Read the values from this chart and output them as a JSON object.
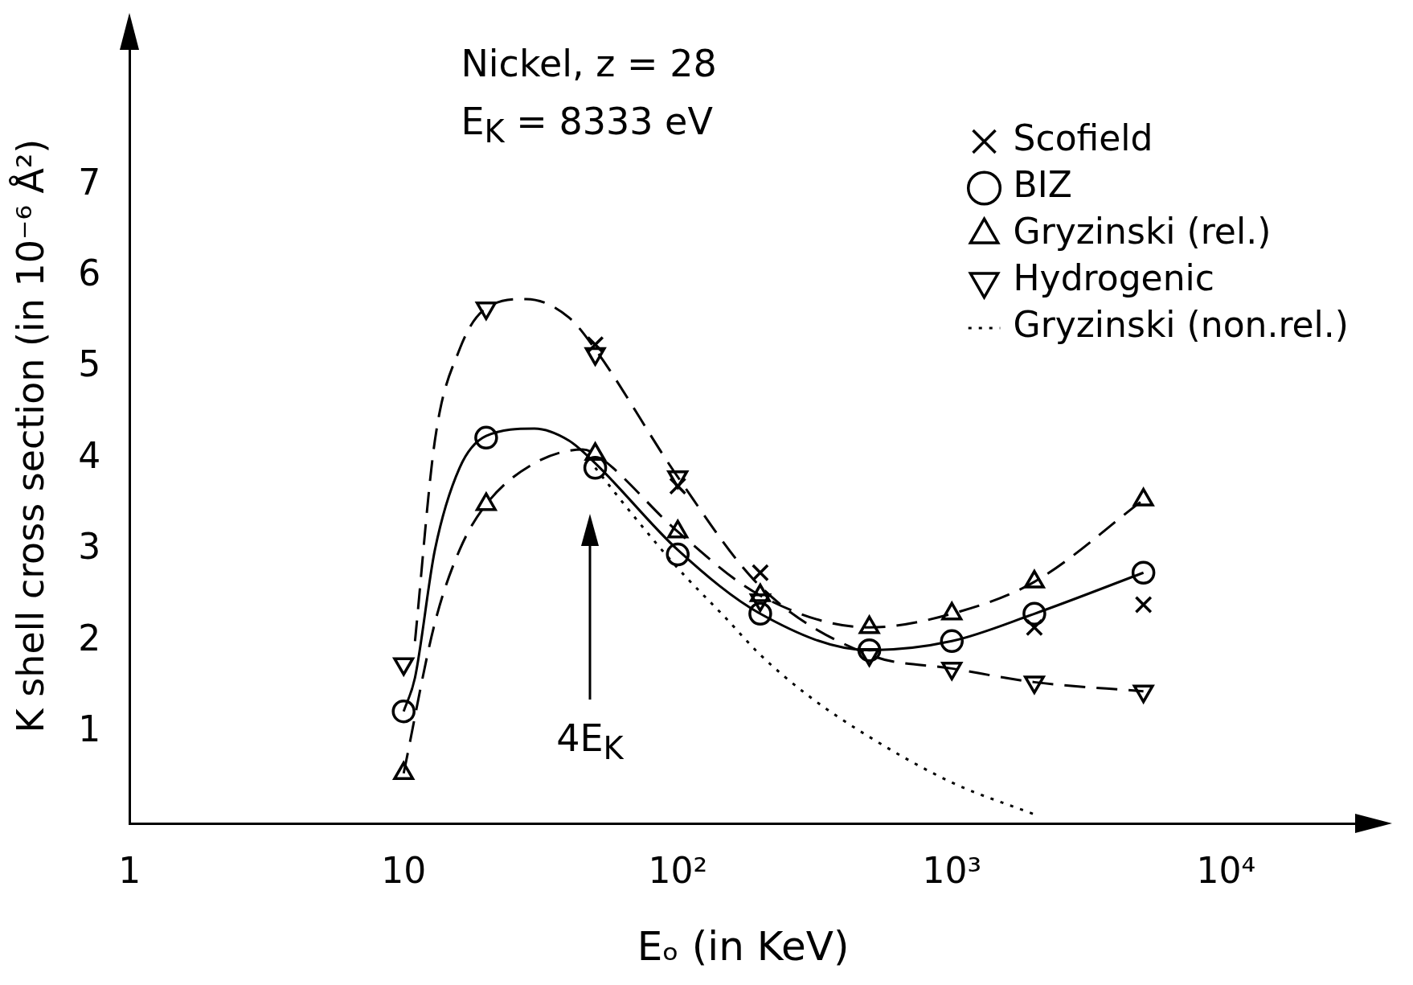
{
  "chart_data": {
    "type": "line",
    "xlabel": "Eₒ (in KeV)",
    "ylabel": "K shell cross section (in 10⁻⁶ Å²)",
    "log": "x",
    "xlim": [
      1,
      30000
    ],
    "ylim": [
      0,
      8.5
    ],
    "xticks": [
      1,
      10,
      {
        "value": 100,
        "label": "10²"
      },
      {
        "value": 1000,
        "label": "10³"
      },
      {
        "value": 10000,
        "label": "10⁴"
      }
    ],
    "yticks": [
      1,
      2,
      3,
      4,
      5,
      6,
      7
    ],
    "grid": false,
    "legend": "top right",
    "annotations": [
      "Nickel, z = 28",
      "E$_{K}$ = 8333 eV",
      "4E$_{K}$"
    ],
    "series": [
      {
        "name": "Scofield",
        "type": "scatter",
        "marker": "cross",
        "color": "#000000",
        "x": [
          50,
          100,
          200,
          2000,
          5000
        ],
        "values": [
          5.25,
          3.7,
          2.75,
          2.15,
          2.4
        ]
      },
      {
        "name": "BIZ",
        "type": "scatter",
        "marker": "circle",
        "color": "#000000",
        "x": [
          10,
          20,
          50,
          100,
          200,
          500,
          1000,
          2000,
          5000
        ],
        "values": [
          1.23,
          4.23,
          3.9,
          2.95,
          2.3,
          1.9,
          2.0,
          2.3,
          2.75
        ]
      },
      {
        "name": "Gryzinski (rel.)",
        "type": "scatter",
        "marker": "triangle",
        "color": "#000000",
        "x": [
          10,
          20,
          50,
          100,
          200,
          500,
          1000,
          2000,
          5000
        ],
        "values": [
          0.55,
          3.5,
          4.05,
          3.2,
          2.5,
          2.15,
          2.3,
          2.65,
          3.55
        ]
      },
      {
        "name": "Hydrogenic",
        "type": "scatter",
        "marker": "triangle_down",
        "color": "#000000",
        "x": [
          10,
          20,
          50,
          100,
          200,
          500,
          1000,
          2000,
          5000
        ],
        "values": [
          1.75,
          5.65,
          5.15,
          3.8,
          2.45,
          1.85,
          1.7,
          1.55,
          1.45
        ]
      },
      {
        "name": "Gryzinski (non.rel.)",
        "marker": "none",
        "line_style": "dotted",
        "color": "#000000",
        "x": [
          50,
          70,
          100,
          150,
          200,
          300,
          500,
          1000,
          2000
        ],
        "values": [
          3.9,
          3.35,
          2.8,
          2.25,
          1.85,
          1.4,
          0.95,
          0.45,
          0.1
        ]
      },
      {
        "marker": "none",
        "line_style": "solid",
        "color": "#000000",
        "x": [
          10,
          11,
          13,
          16,
          20,
          30,
          40,
          50,
          100,
          200,
          500,
          1000,
          2000,
          5000
        ],
        "values": [
          1.23,
          1.6,
          3.0,
          3.9,
          4.25,
          4.33,
          4.2,
          3.95,
          3.0,
          2.3,
          1.9,
          2.0,
          2.3,
          2.75
        ]
      },
      {
        "marker": "none",
        "line_style": "dashed",
        "color": "#000000",
        "x": [
          10,
          13,
          16,
          20,
          30,
          45,
          50,
          100,
          200,
          500,
          1000,
          2000,
          5000
        ],
        "values": [
          0.55,
          2.2,
          3.0,
          3.5,
          3.95,
          4.1,
          4.05,
          3.2,
          2.5,
          2.15,
          2.3,
          2.65,
          3.55
        ]
      },
      {
        "marker": "none",
        "line_style": "dashed",
        "color": "#000000",
        "x": [
          11,
          13,
          16,
          20,
          28,
          40,
          50,
          100,
          200,
          500,
          1000,
          2000,
          5000
        ],
        "values": [
          2.0,
          4.2,
          5.2,
          5.65,
          5.75,
          5.55,
          5.2,
          3.8,
          2.6,
          1.85,
          1.7,
          1.55,
          1.45
        ]
      }
    ]
  }
}
